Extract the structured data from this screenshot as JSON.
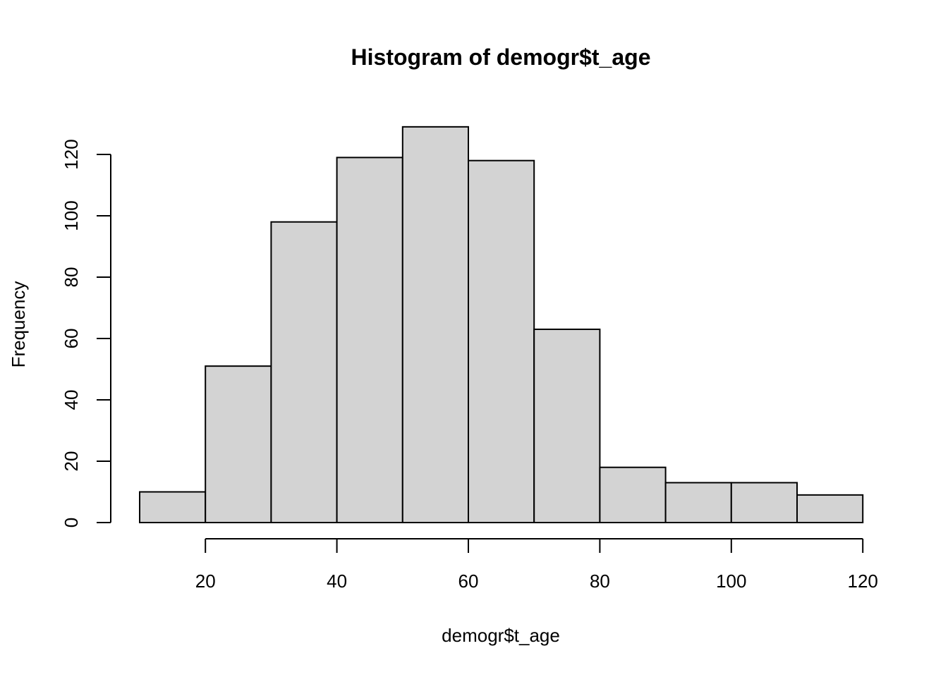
{
  "chart_data": {
    "type": "bar",
    "title": "Histogram of demogr$t_age",
    "xlabel": "demogr$t_age",
    "ylabel": "Frequency",
    "bins": [
      {
        "from": 10,
        "to": 20,
        "count": 10
      },
      {
        "from": 20,
        "to": 30,
        "count": 51
      },
      {
        "from": 30,
        "to": 40,
        "count": 98
      },
      {
        "from": 40,
        "to": 50,
        "count": 119
      },
      {
        "from": 50,
        "to": 60,
        "count": 129
      },
      {
        "from": 60,
        "to": 70,
        "count": 118
      },
      {
        "from": 70,
        "to": 80,
        "count": 63
      },
      {
        "from": 80,
        "to": 90,
        "count": 18
      },
      {
        "from": 90,
        "to": 100,
        "count": 13
      },
      {
        "from": 100,
        "to": 110,
        "count": 13
      },
      {
        "from": 110,
        "to": 120,
        "count": 9
      }
    ],
    "x_ticks": [
      20,
      40,
      60,
      80,
      100,
      120
    ],
    "y_ticks": [
      0,
      20,
      40,
      60,
      80,
      100,
      120
    ],
    "xlim": [
      10,
      120
    ],
    "ylim": [
      0,
      129
    ],
    "grid": false,
    "bar_color": "#d3d3d3"
  }
}
